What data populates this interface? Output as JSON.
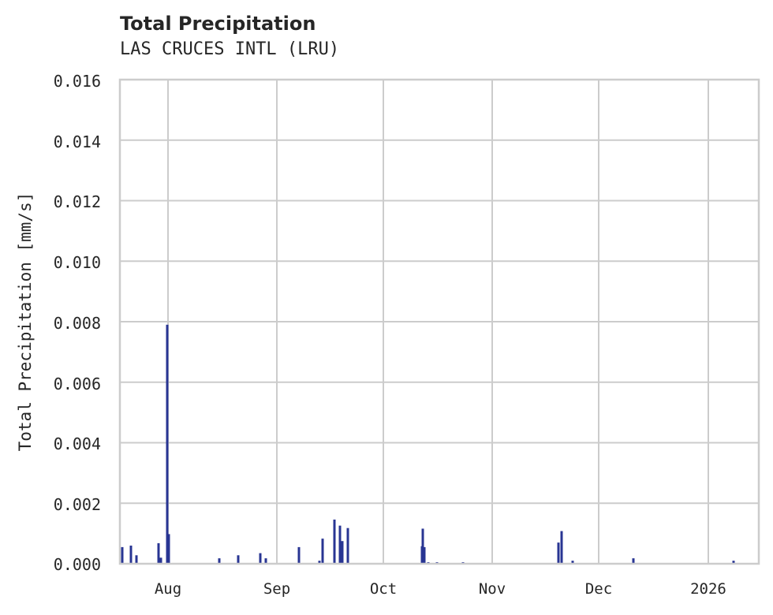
{
  "chart": {
    "title": "Total Precipitation",
    "subtitle": "LAS CRUCES INTL (LRU)",
    "ylabel": "Total Precipitation [mm/s]",
    "yticks": [
      "0.016",
      "0.014",
      "0.012",
      "0.010",
      "0.008",
      "0.006",
      "0.004",
      "0.002",
      "0.000"
    ],
    "xticks": [
      "Aug",
      "Sep",
      "Oct",
      "Nov",
      "Dec",
      "2026"
    ]
  },
  "colors": {
    "bar": "#283593",
    "grid": "#cccccc",
    "text": "#262626"
  },
  "chart_data": {
    "type": "bar",
    "title": "Total Precipitation",
    "subtitle": "LAS CRUCES INTL (LRU)",
    "xlabel": "",
    "ylabel": "Total Precipitation [mm/s]",
    "ylim": [
      0,
      0.016
    ],
    "xlim": [
      "2025-07-18",
      "2026-01-16"
    ],
    "grid": true,
    "legend": null,
    "x_tick_labels": [
      "Aug",
      "Sep",
      "Oct",
      "Nov",
      "Dec",
      "2026"
    ],
    "y_tick_labels": [
      "0.000",
      "0.002",
      "0.004",
      "0.006",
      "0.008",
      "0.010",
      "0.012",
      "0.014",
      "0.016"
    ],
    "series": [
      {
        "name": "Total Precipitation",
        "x": [
          "2025-07-19",
          "2025-07-21",
          "2025-07-23",
          "2025-07-29",
          "2025-07-30",
          "2025-07-31",
          "2025-08-01",
          "2025-08-15",
          "2025-08-20",
          "2025-08-26",
          "2025-08-28",
          "2025-09-06",
          "2025-09-12",
          "2025-09-13",
          "2025-09-16",
          "2025-09-17",
          "2025-09-18",
          "2025-09-19",
          "2025-10-11",
          "2025-10-11",
          "2025-10-12",
          "2025-10-13",
          "2025-10-15",
          "2025-10-22",
          "2025-11-19",
          "2025-11-20",
          "2025-11-23",
          "2025-12-10",
          "2026-01-07"
        ],
        "values": [
          0.00055,
          0.0006,
          0.00028,
          0.00068,
          0.0002,
          0.0079,
          0.00098,
          0.00018,
          0.00028,
          0.00035,
          0.00018,
          0.00055,
          0.0001,
          0.00083,
          0.00146,
          0.00126,
          0.00075,
          0.00118,
          0.00058,
          0.00116,
          0.00055,
          5e-05,
          5e-05,
          5e-05,
          0.0007,
          0.00108,
          0.0001,
          0.00018,
          0.0001
        ],
        "px": [
          155,
          166,
          173,
          201,
          204,
          212,
          214,
          278,
          302,
          330,
          337,
          379,
          405,
          409,
          424,
          431,
          434,
          441,
          535,
          536,
          538,
          543,
          554,
          587,
          708,
          712,
          726,
          803,
          930
        ]
      }
    ]
  }
}
